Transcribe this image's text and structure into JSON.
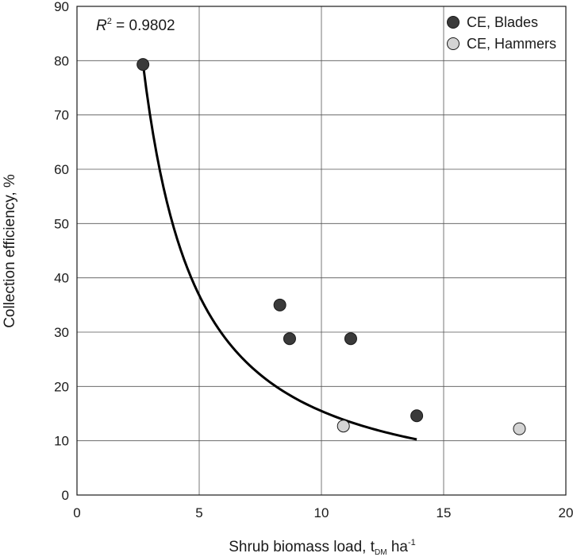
{
  "chart_data": {
    "type": "scatter",
    "xlabel": "Shrub biomass load, t",
    "xlabel_sub": "DM",
    "xlabel_unit": "ha",
    "xlabel_sup": "-1",
    "ylabel": "Collection efficiency, %",
    "xlim": [
      0,
      20
    ],
    "ylim": [
      0,
      90
    ],
    "x_ticks": [
      0,
      5,
      10,
      15,
      20
    ],
    "y_ticks": [
      0,
      10,
      20,
      30,
      40,
      50,
      60,
      70,
      80,
      90
    ],
    "grid": true,
    "legend_position": "top-right",
    "annotation": {
      "r_letter": "R",
      "r_sup": "2",
      "r_value": " = 0.9802"
    },
    "series": [
      {
        "name": "CE, Blades",
        "color": "#3a3a3a",
        "points": [
          {
            "x": 2.7,
            "y": 79.3
          },
          {
            "x": 8.3,
            "y": 35.0
          },
          {
            "x": 8.7,
            "y": 28.8
          },
          {
            "x": 11.2,
            "y": 28.8
          },
          {
            "x": 13.9,
            "y": 14.6
          }
        ]
      },
      {
        "name": "CE, Hammers",
        "color": "#d4d4d4",
        "points": [
          {
            "x": 10.9,
            "y": 12.7
          },
          {
            "x": 18.1,
            "y": 12.2
          }
        ]
      }
    ],
    "trendline": {
      "type": "power",
      "a": 275,
      "b": -1.25,
      "x_range": [
        2.7,
        13.9
      ],
      "color": "#000000"
    }
  }
}
